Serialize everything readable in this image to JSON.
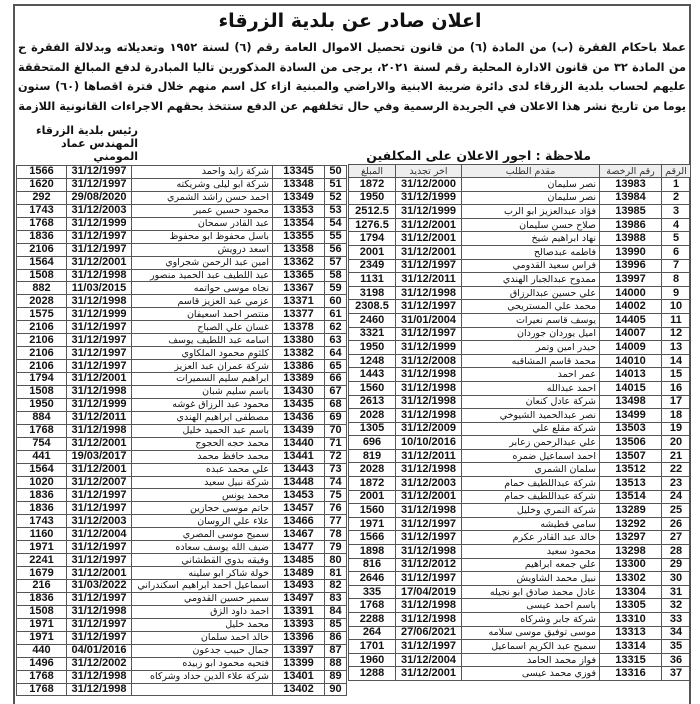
{
  "title": "اعلان صادر عن بلدية الزرقاء",
  "body": "عملا باحكام الفقرة (ب) من المادة (٦) من قانون تحصيل الاموال العامة رقم (٦) لسنة ١٩٥٢ وتعديلاته وبدلالة الفقرة ح من المادة ٣٢ من قانون الادارة المحلية رقم لسنة ٢٠٢١، يرجى من السادة المذكورين تاليا المبادرة لدفع المبالغ المتحققة عليهم لحساب بلدية الزرقاء لدى دائرة ضريبة الابنية والاراضي والمبنية ازاء كل اسم منهم خلال فترة اقصاها (٦٠) ستون يوما من تاريخ نشر هذا الاعلان في الجريدة الرسمية وفي حال تخلفهم عن الدفع ستتخذ بحقهم الاجراءات القانونية اللازمة",
  "signature": {
    "line1": "رئيس بلدية الزرقاء",
    "line2": "المهندس عماد المومني"
  },
  "note": "ملاحظة : اجور الاعلان على المكلفين ادناه",
  "columns": [
    "الرقم",
    "رقم الرخصة",
    "مقدم الطلب",
    "اخر تجديد",
    "المبلغ"
  ],
  "right_rows": [
    [
      "1",
      "13983",
      "نصر سليمان",
      "31/12/2000",
      "1872"
    ],
    [
      "2",
      "13984",
      "نصر سليمان",
      "31/12/1999",
      "1950"
    ],
    [
      "3",
      "13985",
      "فؤاد عبدالعزيز ابو الرب",
      "31/12/1999",
      "2512.5"
    ],
    [
      "4",
      "13986",
      "صلاح حسن سليمان",
      "31/12/2001",
      "1276.5"
    ],
    [
      "5",
      "13988",
      "نهاد ابراهيم شيخ",
      "31/12/2001",
      "1794"
    ],
    [
      "6",
      "13990",
      "فاطمه عبدصالح",
      "31/12/2001",
      "2001"
    ],
    [
      "7",
      "13996",
      "فراس سعيد القدومي",
      "31/12/1997",
      "2349"
    ],
    [
      "8",
      "13997",
      "ممدوح عبدالجبار الهندي",
      "31/12/2011",
      "1131"
    ],
    [
      "9",
      "14000",
      "علي حسين عبدالرزاق",
      "31/12/1998",
      "3198"
    ],
    [
      "10",
      "14002",
      "محمد علي المستريحي",
      "31/12/1997",
      "2308.5"
    ],
    [
      "11",
      "14405",
      "يوسف قاسم نعيرات",
      "31/01/2004",
      "2460"
    ],
    [
      "12",
      "14007",
      "اميل يوردان جوردان",
      "31/12/1997",
      "3321"
    ],
    [
      "13",
      "14009",
      "حيدر امين وتمر",
      "31/12/1999",
      "1950"
    ],
    [
      "14",
      "14010",
      "محمد قاسم المشاقبه",
      "31/12/2008",
      "1248"
    ],
    [
      "15",
      "14013",
      "عمر احمد",
      "31/12/1998",
      "1443"
    ],
    [
      "16",
      "14015",
      "احمد عبدالله",
      "31/12/1998",
      "1560"
    ],
    [
      "17",
      "13498",
      "شركة عادل كنعان",
      "31/12/1998",
      "2613"
    ],
    [
      "18",
      "13499",
      "نصر عبدالحميد الشيوخي",
      "31/12/1998",
      "2028"
    ],
    [
      "19",
      "13503",
      "شركة مقلع علي",
      "31/12/2009",
      "1305"
    ],
    [
      "20",
      "13506",
      "علي عبدالرحمن زعابر",
      "10/10/2016",
      "696"
    ],
    [
      "21",
      "13507",
      "احمد اسماعيل ضمره",
      "31/12/2011",
      "819"
    ],
    [
      "22",
      "13512",
      "سلمان الشمري",
      "31/12/1998",
      "2028"
    ],
    [
      "23",
      "13513",
      "شركة عبداللطيف حمام",
      "31/12/2003",
      "1872"
    ],
    [
      "24",
      "13514",
      "شركة عبداللطيف حمام",
      "31/12/2001",
      "2001"
    ],
    [
      "25",
      "13289",
      "شركة النمري وخليل",
      "31/12/1998",
      "1560"
    ],
    [
      "26",
      "13292",
      "سامي قطيشه",
      "31/12/1997",
      "1971"
    ],
    [
      "27",
      "13297",
      "خالد عبد القادر عكرم",
      "31/12/1997",
      "1566"
    ],
    [
      "28",
      "13298",
      "محمود سعيد",
      "31/12/1998",
      "1898"
    ],
    [
      "29",
      "13300",
      "علي جمعه ابراهيم",
      "31/12/2012",
      "816"
    ],
    [
      "30",
      "13302",
      "نبيل محمد الشاويش",
      "31/12/1997",
      "2646"
    ],
    [
      "31",
      "13304",
      "عادل محمد صادق ابو نجيله",
      "17/04/2019",
      "335"
    ],
    [
      "32",
      "13305",
      "باسم احمد عيسى",
      "31/12/1998",
      "1768"
    ],
    [
      "33",
      "13310",
      "شركة جابر وشركاه",
      "31/12/1998",
      "2288"
    ],
    [
      "34",
      "13313",
      "موسى توفيق موسى سلامه",
      "27/06/2021",
      "264"
    ],
    [
      "35",
      "13314",
      "سميح عبد الكريم اسماعيل",
      "31/12/1997",
      "1701"
    ],
    [
      "36",
      "13315",
      "فواز محمد الحامد",
      "31/12/2004",
      "1960"
    ],
    [
      "37",
      "13316",
      "فوزي محمد عيسى",
      "31/12/2001",
      "1288"
    ]
  ],
  "left_rows": [
    [
      "50",
      "13345",
      "شركة زايد واحمد",
      "31/12/1997",
      "1566"
    ],
    [
      "51",
      "13348",
      "شركة ابو ليلى وشريكته",
      "31/12/1997",
      "1620"
    ],
    [
      "52",
      "13349",
      "احمد حسن راشد الشمري",
      "29/08/2020",
      "292"
    ],
    [
      "53",
      "13353",
      "محمود حسين عمير",
      "31/12/2003",
      "1743"
    ],
    [
      "54",
      "13354",
      "عبد القادر سمحان",
      "31/12/1999",
      "1768"
    ],
    [
      "55",
      "13355",
      "باسل محفوظ ابو محفوظ",
      "31/12/1997",
      "1836"
    ],
    [
      "56",
      "13358",
      "اسعد درويش",
      "31/12/1997",
      "2106"
    ],
    [
      "57",
      "13362",
      "امين عبد الرحمن شجراوي",
      "31/12/2001",
      "1564"
    ],
    [
      "58",
      "13365",
      "عبد اللطيف عبد الحميد منصور",
      "31/12/1998",
      "1508"
    ],
    [
      "59",
      "13367",
      "نجاه موسى حواتمه",
      "11/03/2015",
      "882"
    ],
    [
      "60",
      "13371",
      "عزمي عبد العزيز قاسم",
      "31/12/1998",
      "2028"
    ],
    [
      "61",
      "13377",
      "منتصر احمد اسعيفان",
      "31/12/1999",
      "1575"
    ],
    [
      "62",
      "13378",
      "غسان علي الصباح",
      "31/12/1997",
      "2106"
    ],
    [
      "63",
      "13380",
      "اسامه عبد اللطيف يوسف",
      "31/12/1997",
      "2106"
    ],
    [
      "64",
      "13382",
      "كلثوم محمود الملكاوي",
      "31/12/1997",
      "2106"
    ],
    [
      "65",
      "13386",
      "شركة عمران عبد العزيز",
      "31/12/1997",
      "2106"
    ],
    [
      "66",
      "13389",
      "ابراهيم سليم السميرات",
      "31/12/2001",
      "1794"
    ],
    [
      "67",
      "13430",
      "باسم سليم شبان",
      "31/12/1998",
      "1508"
    ],
    [
      "68",
      "13435",
      "محمود عبد الرزاق غوشه",
      "31/12/1999",
      "1950"
    ],
    [
      "69",
      "13436",
      "مصطفى ابراهيم الهندي",
      "31/12/2011",
      "884"
    ],
    [
      "70",
      "13439",
      "باسم عبد الحميد خليل",
      "31/12/1998",
      "1768"
    ],
    [
      "71",
      "13440",
      "محمد حجه الحجوج",
      "31/12/2001",
      "754"
    ],
    [
      "72",
      "13441",
      "محمد حافظ محمد",
      "19/03/2017",
      "441"
    ],
    [
      "73",
      "13443",
      "علي محمد عبده",
      "31/12/2001",
      "1564"
    ],
    [
      "74",
      "13448",
      "شركة نبيل سعيد",
      "31/12/2007",
      "1020"
    ],
    [
      "75",
      "13453",
      "محمد يونس",
      "31/12/1997",
      "1836"
    ],
    [
      "76",
      "13457",
      "حاتم موسى حجازين",
      "31/12/1997",
      "1836"
    ],
    [
      "77",
      "13466",
      "علاء علي الروسان",
      "31/12/2003",
      "1743"
    ],
    [
      "78",
      "13467",
      "سميح موسى المصري",
      "31/12/2004",
      "1160"
    ],
    [
      "79",
      "13477",
      "ضيف الله يوسف سعاده",
      "31/12/1997",
      "1971"
    ],
    [
      "80",
      "13485",
      "وفيقه بدوي القطشاني",
      "31/12/1997",
      "2241"
    ],
    [
      "81",
      "13489",
      "خولة شاكر ابو سلينه",
      "31/12/2001",
      "1679"
    ],
    [
      "82",
      "13493",
      "اسماعيل احمد ابراهيم اسكندراني",
      "31/03/2022",
      "216"
    ],
    [
      "83",
      "13497",
      "سمير حسين القدومي",
      "31/12/1997",
      "1836"
    ],
    [
      "84",
      "13391",
      "احمد داود الزق",
      "31/12/1998",
      "1508"
    ],
    [
      "85",
      "13393",
      "محمد خليل",
      "31/12/1997",
      "1971"
    ],
    [
      "86",
      "13396",
      "خالد احمد سلمان",
      "31/12/1997",
      "1971"
    ],
    [
      "87",
      "13397",
      "جمال حبيب جدعون",
      "04/01/2016",
      "440"
    ],
    [
      "88",
      "13399",
      "فتحيه محمود ابو زبيده",
      "31/12/2002",
      "1496"
    ],
    [
      "89",
      "13401",
      "شركة علاء الدين حداد وشركاه",
      "31/12/1998",
      "1768"
    ],
    [
      "90",
      "13402",
      "",
      "31/12/1998",
      "1768"
    ]
  ]
}
